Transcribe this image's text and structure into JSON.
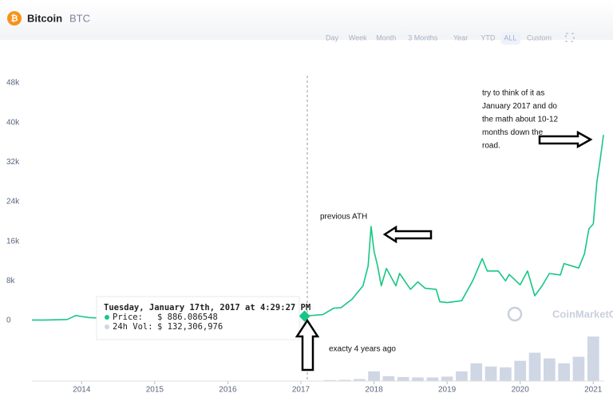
{
  "header": {
    "name": "Bitcoin",
    "symbol": "BTC",
    "tabs": [
      "Day",
      "Week",
      "Month",
      "3 Months",
      "Year",
      "YTD",
      "ALL",
      "Custom"
    ],
    "active_tab": "ALL"
  },
  "chart_data": [
    {
      "type": "line",
      "x": [
        2013.32,
        2013.5,
        2013.8,
        2013.92,
        2014.0,
        2014.1,
        2014.3,
        2014.5,
        2014.8,
        2015.0,
        2015.5,
        2015.9,
        2016.3,
        2016.5,
        2016.8,
        2017.0,
        2017.05,
        2017.3,
        2017.45,
        2017.55,
        2017.7,
        2017.85,
        2017.92,
        2017.96,
        2018.0,
        2018.05,
        2018.1,
        2018.17,
        2018.3,
        2018.35,
        2018.5,
        2018.6,
        2018.7,
        2018.85,
        2018.9,
        2019.0,
        2019.2,
        2019.35,
        2019.48,
        2019.55,
        2019.7,
        2019.8,
        2019.85,
        2020.0,
        2020.1,
        2020.2,
        2020.3,
        2020.4,
        2020.55,
        2020.6,
        2020.8,
        2020.88,
        2020.94,
        2021.0,
        2021.05,
        2021.1,
        2021.14
      ],
      "series": [
        {
          "name": "Price",
          "color": "#16c784",
          "values": [
            100,
            90,
            200,
            1000,
            800,
            600,
            450,
            620,
            380,
            250,
            260,
            430,
            430,
            670,
            700,
            1000,
            886,
            1200,
            2500,
            2600,
            4300,
            7000,
            11000,
            19000,
            14000,
            11000,
            7000,
            10500,
            7000,
            9500,
            6300,
            7800,
            6500,
            6300,
            3800,
            3600,
            4000,
            8000,
            12500,
            10000,
            10000,
            8000,
            9300,
            7200,
            10000,
            5000,
            7000,
            9500,
            9200,
            11500,
            10600,
            13500,
            18500,
            19500,
            28000,
            33000,
            37500
          ]
        }
      ],
      "xlim": [
        2013.32,
        2021.15
      ],
      "xticks": [
        2014,
        2015,
        2016,
        2017,
        2018,
        2019,
        2020,
        2021
      ],
      "ylim": [
        0,
        48000
      ],
      "yticks": [
        {
          "value": 0,
          "label": "0"
        },
        {
          "value": 8000,
          "label": "8k"
        },
        {
          "value": 16000,
          "label": "16k"
        },
        {
          "value": 24000,
          "label": "24k"
        },
        {
          "value": 32000,
          "label": "32k"
        },
        {
          "value": 40000,
          "label": "40k"
        },
        {
          "value": 48000,
          "label": "48k"
        }
      ],
      "grid": false,
      "tooltip": {
        "date": "Tuesday, January 17th, 2017 at 4:29:27 PM",
        "point": 16,
        "price_label": "Price:",
        "price": "$ 886.086548",
        "vol_label": "24h Vol:",
        "vol": "$ 132,306,976"
      },
      "annotations": {
        "ath": "previous ATH",
        "four_years": "exacty 4 years ago",
        "think": [
          "try to think of it as",
          "January 2017 and do",
          "the math about 10-12",
          "months down the",
          "road."
        ]
      },
      "watermark": "CoinMarketCap"
    },
    {
      "type": "bar",
      "x": [
        2013.4,
        2013.6,
        2013.8,
        2014.0,
        2014.2,
        2014.4,
        2014.6,
        2014.8,
        2015.0,
        2015.2,
        2015.4,
        2015.6,
        2015.8,
        2016.0,
        2016.2,
        2016.4,
        2016.6,
        2016.8,
        2017.0,
        2017.2,
        2017.4,
        2017.6,
        2017.8,
        2018.0,
        2018.2,
        2018.4,
        2018.6,
        2018.8,
        2019.0,
        2019.2,
        2019.4,
        2019.6,
        2019.8,
        2020.0,
        2020.2,
        2020.4,
        2020.6,
        2020.8,
        2021.0
      ],
      "values": [
        0.02,
        0.02,
        0.05,
        0.1,
        0.05,
        0.03,
        0.03,
        0.03,
        0.05,
        0.03,
        0.03,
        0.05,
        0.05,
        0.08,
        0.05,
        0.08,
        0.1,
        0.1,
        0.2,
        0.3,
        1.2,
        1.5,
        2.5,
        12,
        6,
        5,
        4.5,
        4.5,
        5.5,
        12,
        22,
        18,
        17,
        25,
        35,
        28,
        22,
        30,
        55
      ],
      "color": "#cfd6e4",
      "xlim": [
        2013.32,
        2021.15
      ],
      "ylim": [
        0,
        65
      ]
    }
  ]
}
